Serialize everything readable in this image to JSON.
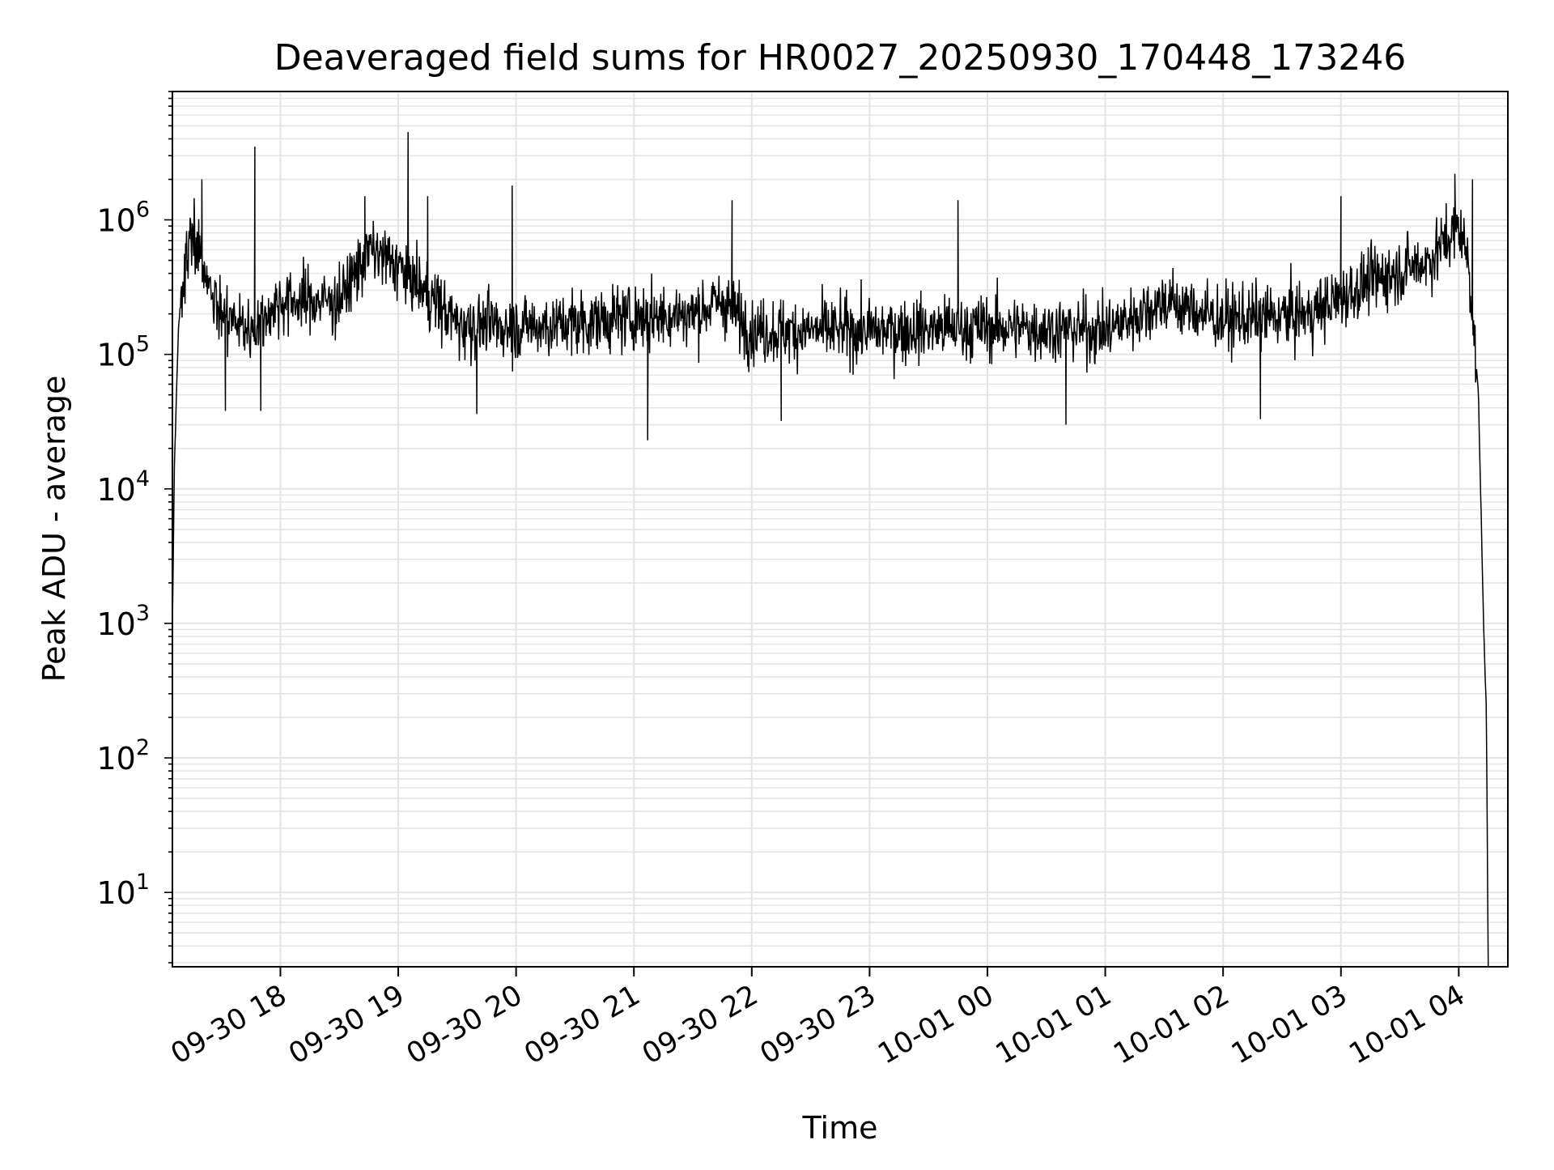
{
  "chart_data": {
    "type": "line",
    "title": "Deaveraged field sums for HR0027_20250930_170448_173246",
    "xlabel": "Time",
    "ylabel": "Peak ADU - average",
    "x_axis": {
      "type": "datetime",
      "range": [
        "2025-09-30 17:05",
        "2025-10-01 04:25"
      ],
      "tick_labels": [
        {
          "label": "09-30 18",
          "time": "2025-09-30 18:00"
        },
        {
          "label": "09-30 19",
          "time": "2025-09-30 19:00"
        },
        {
          "label": "09-30 20",
          "time": "2025-09-30 20:00"
        },
        {
          "label": "09-30 21",
          "time": "2025-09-30 21:00"
        },
        {
          "label": "09-30 22",
          "time": "2025-09-30 22:00"
        },
        {
          "label": "09-30 23",
          "time": "2025-09-30 23:00"
        },
        {
          "label": "10-01 00",
          "time": "2025-10-01 00:00"
        },
        {
          "label": "10-01 01",
          "time": "2025-10-01 01:00"
        },
        {
          "label": "10-01 02",
          "time": "2025-10-01 02:00"
        },
        {
          "label": "10-01 03",
          "time": "2025-10-01 03:00"
        },
        {
          "label": "10-01 04",
          "time": "2025-10-01 04:00"
        }
      ]
    },
    "y_axis": {
      "scale": "log",
      "range": [
        2.8,
        9000000
      ],
      "ticks": [
        {
          "base": "10",
          "exp": "1",
          "value": 10
        },
        {
          "base": "10",
          "exp": "2",
          "value": 100
        },
        {
          "base": "10",
          "exp": "3",
          "value": 1000
        },
        {
          "base": "10",
          "exp": "4",
          "value": 10000
        },
        {
          "base": "10",
          "exp": "5",
          "value": 100000
        },
        {
          "base": "10",
          "exp": "6",
          "value": 1000000
        }
      ]
    },
    "grid": true,
    "minor_grid": true,
    "legend": "none",
    "series": [
      {
        "color": "#000000",
        "points": [
          [
            "2025-09-30 17:05",
            900
          ],
          [
            "2025-09-30 17:06",
            15000
          ],
          [
            "2025-09-30 17:08",
            150000
          ],
          [
            "2025-09-30 17:10",
            350000
          ],
          [
            "2025-09-30 17:15",
            800000
          ],
          [
            "2025-09-30 17:20",
            450000
          ],
          [
            "2025-09-30 17:30",
            200000
          ],
          [
            "2025-09-30 17:45",
            150000
          ],
          [
            "2025-09-30 18:00",
            250000
          ],
          [
            "2025-09-30 18:30",
            250000
          ],
          [
            "2025-09-30 18:45",
            600000
          ],
          [
            "2025-09-30 19:00",
            450000
          ],
          [
            "2025-09-30 19:15",
            280000
          ],
          [
            "2025-09-30 19:30",
            170000
          ],
          [
            "2025-09-30 20:00",
            160000
          ],
          [
            "2025-09-30 20:30",
            170000
          ],
          [
            "2025-09-30 21:00",
            190000
          ],
          [
            "2025-09-30 21:30",
            200000
          ],
          [
            "2025-09-30 21:45",
            250000
          ],
          [
            "2025-09-30 22:00",
            150000
          ],
          [
            "2025-09-30 23:00",
            150000
          ],
          [
            "2025-10-01 00:00",
            160000
          ],
          [
            "2025-10-01 01:00",
            150000
          ],
          [
            "2025-10-01 01:30",
            250000
          ],
          [
            "2025-10-01 02:00",
            180000
          ],
          [
            "2025-10-01 02:45",
            200000
          ],
          [
            "2025-10-01 03:15",
            350000
          ],
          [
            "2025-10-01 03:45",
            500000
          ],
          [
            "2025-10-01 04:00",
            900000
          ],
          [
            "2025-10-01 04:05",
            500000
          ],
          [
            "2025-10-01 04:10",
            50000
          ],
          [
            "2025-10-01 04:13",
            600
          ],
          [
            "2025-10-01 04:14",
            250
          ],
          [
            "2025-10-01 04:15",
            3
          ]
        ],
        "noise_sigma_dex": 0.22
      }
    ],
    "spikes": [
      [
        "2025-09-30 17:20",
        2000000
      ],
      [
        "2025-09-30 17:47",
        3500000
      ],
      [
        "2025-09-30 18:43",
        1500000
      ],
      [
        "2025-09-30 19:05",
        4500000
      ],
      [
        "2025-09-30 19:15",
        1500000
      ],
      [
        "2025-09-30 19:58",
        1800000
      ],
      [
        "2025-09-30 21:50",
        1400000
      ],
      [
        "2025-09-30 23:45",
        1400000
      ],
      [
        "2025-10-01 03:00",
        1500000
      ],
      [
        "2025-10-01 03:58",
        2200000
      ],
      [
        "2025-10-01 04:07",
        2000000
      ]
    ],
    "dips": [
      [
        "2025-09-30 17:32",
        38000
      ],
      [
        "2025-09-30 17:50",
        38000
      ],
      [
        "2025-09-30 19:40",
        36000
      ],
      [
        "2025-09-30 21:07",
        23000
      ],
      [
        "2025-09-30 22:15",
        32000
      ],
      [
        "2025-10-01 00:40",
        30000
      ],
      [
        "2025-10-01 02:19",
        33000
      ]
    ]
  }
}
